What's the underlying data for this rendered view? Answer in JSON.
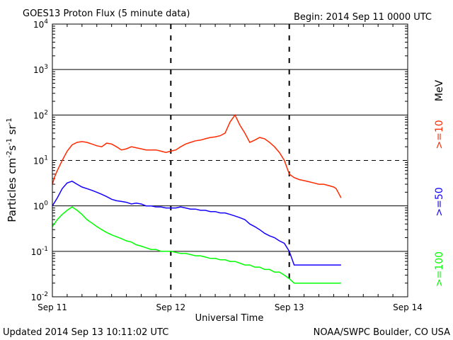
{
  "chart_data": {
    "type": "line",
    "title": "GOES13 Proton Flux (5 minute data)",
    "begin_label": "Begin: 2014 Sep 11 0000 UTC",
    "xlabel": "Universal Time",
    "ylabel": "Particles cm⁻²s⁻¹sr⁻¹",
    "ylabel_parts": {
      "base": "Particles cm",
      "e1": "-2",
      "s": "s",
      "e2": "-1",
      "sr": " sr",
      "e3": "-1"
    },
    "y_scale": "log",
    "ylim": [
      0.01,
      10000
    ],
    "yticks": [
      {
        "base": "10",
        "exp": "4",
        "value": 10000
      },
      {
        "base": "10",
        "exp": "3",
        "value": 1000
      },
      {
        "base": "10",
        "exp": "2",
        "value": 100
      },
      {
        "base": "10",
        "exp": "1",
        "value": 10
      },
      {
        "base": "10",
        "exp": "0",
        "value": 1
      },
      {
        "base": "10",
        "exp": "-1",
        "value": 0.1
      },
      {
        "base": "10",
        "exp": "-2",
        "value": 0.01
      }
    ],
    "x_unit": "hours since 2014 Sep 11 0000 UTC",
    "xlim": [
      0,
      72
    ],
    "xticks": [
      {
        "label": "Sep 11",
        "value": 0
      },
      {
        "label": "Sep 12",
        "value": 24
      },
      {
        "label": "Sep 13",
        "value": 48
      },
      {
        "label": "Sep 14",
        "value": 72
      }
    ],
    "thresholds": [
      {
        "value": 10,
        "style": "dashed"
      }
    ],
    "series": [
      {
        "name": ">=10 MeV",
        "label": ">=10",
        "color": "#ff2a00",
        "points": [
          [
            0,
            3
          ],
          [
            0.5,
            4.5
          ],
          [
            1,
            6
          ],
          [
            2,
            10
          ],
          [
            3,
            16
          ],
          [
            4,
            22
          ],
          [
            5,
            25
          ],
          [
            6,
            26
          ],
          [
            7,
            25
          ],
          [
            8,
            23
          ],
          [
            9,
            21
          ],
          [
            10,
            20
          ],
          [
            11,
            24
          ],
          [
            12,
            23
          ],
          [
            13,
            20
          ],
          [
            14,
            17
          ],
          [
            15,
            18
          ],
          [
            16,
            20
          ],
          [
            17,
            19
          ],
          [
            18,
            18
          ],
          [
            19,
            17
          ],
          [
            20,
            17
          ],
          [
            21,
            17
          ],
          [
            22,
            16
          ],
          [
            23,
            15
          ],
          [
            24,
            16
          ],
          [
            25,
            17
          ],
          [
            26,
            20
          ],
          [
            27,
            23
          ],
          [
            28,
            25
          ],
          [
            29,
            27
          ],
          [
            30,
            28
          ],
          [
            31,
            30
          ],
          [
            32,
            32
          ],
          [
            33,
            33
          ],
          [
            34,
            35
          ],
          [
            35,
            40
          ],
          [
            36,
            70
          ],
          [
            37,
            100
          ],
          [
            38,
            60
          ],
          [
            39,
            40
          ],
          [
            40,
            25
          ],
          [
            41,
            28
          ],
          [
            42,
            32
          ],
          [
            43,
            30
          ],
          [
            44,
            25
          ],
          [
            45,
            20
          ],
          [
            46,
            15
          ],
          [
            47,
            10
          ],
          [
            48,
            5
          ],
          [
            49,
            4.2
          ],
          [
            50,
            3.8
          ],
          [
            51,
            3.6
          ],
          [
            52,
            3.4
          ],
          [
            53,
            3.2
          ],
          [
            54,
            3
          ],
          [
            55,
            3
          ],
          [
            56,
            2.8
          ],
          [
            57,
            2.6
          ],
          [
            57.5,
            2.4
          ],
          [
            58,
            1.9
          ],
          [
            58.5,
            1.5
          ]
        ]
      },
      {
        "name": ">=50 MeV",
        "label": ">=50",
        "color": "#1400ff",
        "points": [
          [
            0,
            1
          ],
          [
            1,
            1.5
          ],
          [
            2,
            2.4
          ],
          [
            3,
            3.2
          ],
          [
            4,
            3.5
          ],
          [
            5,
            3
          ],
          [
            6,
            2.6
          ],
          [
            7,
            2.4
          ],
          [
            8,
            2.2
          ],
          [
            9,
            2
          ],
          [
            10,
            1.8
          ],
          [
            11,
            1.6
          ],
          [
            12,
            1.4
          ],
          [
            13,
            1.3
          ],
          [
            14,
            1.25
          ],
          [
            15,
            1.2
          ],
          [
            16,
            1.1
          ],
          [
            17,
            1.15
          ],
          [
            18,
            1.1
          ],
          [
            19,
            1.0
          ],
          [
            20,
            1.0
          ],
          [
            21,
            0.95
          ],
          [
            22,
            0.95
          ],
          [
            23,
            0.9
          ],
          [
            24,
            0.9
          ],
          [
            25,
            0.9
          ],
          [
            26,
            0.95
          ],
          [
            27,
            0.9
          ],
          [
            28,
            0.85
          ],
          [
            29,
            0.85
          ],
          [
            30,
            0.8
          ],
          [
            31,
            0.8
          ],
          [
            32,
            0.75
          ],
          [
            33,
            0.75
          ],
          [
            34,
            0.7
          ],
          [
            35,
            0.7
          ],
          [
            36,
            0.65
          ],
          [
            37,
            0.6
          ],
          [
            38,
            0.55
          ],
          [
            39,
            0.5
          ],
          [
            40,
            0.4
          ],
          [
            41,
            0.35
          ],
          [
            42,
            0.3
          ],
          [
            43,
            0.25
          ],
          [
            44,
            0.22
          ],
          [
            45,
            0.2
          ],
          [
            46,
            0.17
          ],
          [
            47,
            0.15
          ],
          [
            48,
            0.1
          ],
          [
            49,
            0.05
          ],
          [
            50,
            0.05
          ],
          [
            51,
            0.05
          ],
          [
            52,
            0.05
          ],
          [
            53,
            0.05
          ],
          [
            54,
            0.05
          ],
          [
            55,
            0.05
          ],
          [
            56,
            0.05
          ],
          [
            57,
            0.05
          ],
          [
            58,
            0.05
          ],
          [
            58.5,
            0.05
          ]
        ]
      },
      {
        "name": ">=100 MeV",
        "label": ">=100",
        "color": "#00ff00",
        "points": [
          [
            0,
            0.35
          ],
          [
            1,
            0.5
          ],
          [
            2,
            0.65
          ],
          [
            3,
            0.8
          ],
          [
            4,
            0.95
          ],
          [
            5,
            0.8
          ],
          [
            6,
            0.65
          ],
          [
            7,
            0.5
          ],
          [
            8,
            0.42
          ],
          [
            9,
            0.35
          ],
          [
            10,
            0.3
          ],
          [
            11,
            0.26
          ],
          [
            12,
            0.23
          ],
          [
            13,
            0.21
          ],
          [
            14,
            0.19
          ],
          [
            15,
            0.17
          ],
          [
            16,
            0.16
          ],
          [
            17,
            0.14
          ],
          [
            18,
            0.13
          ],
          [
            19,
            0.12
          ],
          [
            20,
            0.11
          ],
          [
            21,
            0.11
          ],
          [
            22,
            0.1
          ],
          [
            23,
            0.1
          ],
          [
            24,
            0.1
          ],
          [
            25,
            0.095
          ],
          [
            26,
            0.09
          ],
          [
            27,
            0.09
          ],
          [
            28,
            0.085
          ],
          [
            29,
            0.08
          ],
          [
            30,
            0.08
          ],
          [
            31,
            0.075
          ],
          [
            32,
            0.07
          ],
          [
            33,
            0.07
          ],
          [
            34,
            0.065
          ],
          [
            35,
            0.065
          ],
          [
            36,
            0.06
          ],
          [
            37,
            0.06
          ],
          [
            38,
            0.055
          ],
          [
            39,
            0.05
          ],
          [
            40,
            0.05
          ],
          [
            41,
            0.045
          ],
          [
            42,
            0.045
          ],
          [
            43,
            0.04
          ],
          [
            44,
            0.04
          ],
          [
            45,
            0.035
          ],
          [
            46,
            0.035
          ],
          [
            47,
            0.03
          ],
          [
            48,
            0.025
          ],
          [
            49,
            0.02
          ],
          [
            50,
            0.02
          ],
          [
            51,
            0.02
          ],
          [
            52,
            0.02
          ],
          [
            53,
            0.02
          ],
          [
            54,
            0.02
          ],
          [
            55,
            0.02
          ],
          [
            56,
            0.02
          ],
          [
            57,
            0.02
          ],
          [
            58,
            0.02
          ],
          [
            58.5,
            0.02
          ]
        ]
      }
    ],
    "legend_unit": "MeV",
    "legend_placement": "right"
  },
  "footer": {
    "updated": "Updated 2014 Sep 13 10:11:02 UTC",
    "credit": "NOAA/SWPC Boulder, CO USA"
  }
}
